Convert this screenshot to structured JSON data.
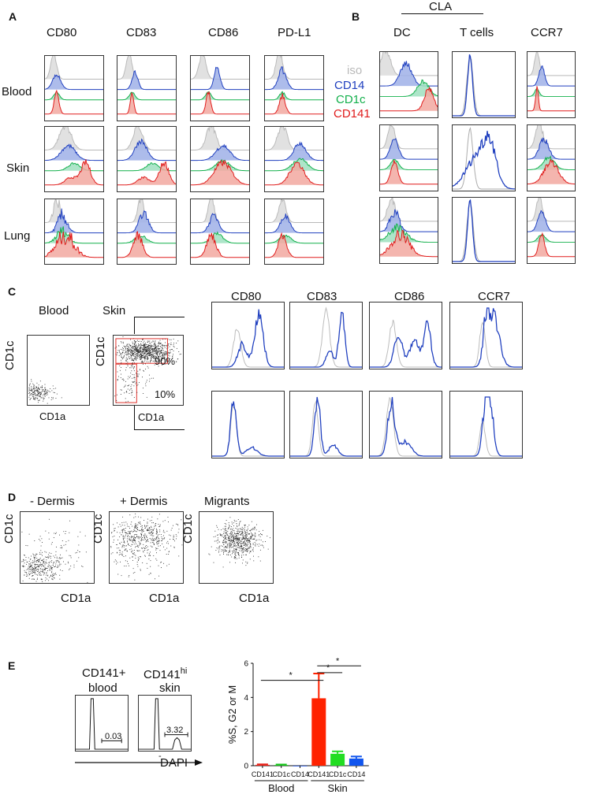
{
  "panels": {
    "A": "A",
    "B": "B",
    "C": "C",
    "D": "D",
    "E": "E"
  },
  "panelA": {
    "columns": [
      "CD80",
      "CD83",
      "CD86",
      "PD-L1"
    ],
    "rows": [
      "Blood",
      "Skin",
      "Lung"
    ]
  },
  "panelB": {
    "cla_label": "CLA",
    "columns": [
      "DC",
      "T cells",
      "CCR7"
    ],
    "legend": [
      {
        "label": "iso",
        "color": "#b9b9b9"
      },
      {
        "label": "CD14",
        "color": "#1f3fbf"
      },
      {
        "label": "CD1c",
        "color": "#12b04b"
      },
      {
        "label": "CD141",
        "color": "#e01b1b"
      }
    ]
  },
  "panelC": {
    "blood_label": "Blood",
    "skin_label": "Skin",
    "y_label": "CD1c",
    "x_label": "CD1a",
    "gate_high_pct": "90%",
    "gate_low_pct": "10%",
    "hist_columns": [
      "CD80",
      "CD83",
      "CD86",
      "CCR7"
    ]
  },
  "panelD": {
    "titles": [
      "- Dermis",
      "+ Dermis",
      "Migrants"
    ],
    "y_label": "CD1c",
    "x_label": "CD1a"
  },
  "panelE": {
    "hist1_title_line1": "CD141+",
    "hist1_title_line2": "blood",
    "hist1_value": "0.03",
    "hist2_title_main": "CD141",
    "hist2_title_sup": "hi",
    "hist2_title_line2": "skin",
    "hist2_value": "3.32",
    "dapi_label": "DAPI",
    "minus_sign": "-",
    "sig_marker": "*"
  },
  "chart_data": {
    "type": "bar",
    "ylabel": "%S, G2 or M",
    "ylim": [
      0,
      6
    ],
    "yticks": [
      0,
      2,
      4,
      6
    ],
    "categories": [
      "CD141",
      "CD1c",
      "CD14",
      "CD141",
      "CD1c",
      "CD14"
    ],
    "groups": [
      {
        "name": "Blood",
        "from": 0,
        "to": 2
      },
      {
        "name": "Skin",
        "from": 3,
        "to": 5
      }
    ],
    "values": [
      0.05,
      0.04,
      0.0,
      3.95,
      0.7,
      0.42
    ],
    "errors": [
      0.03,
      0.03,
      0.0,
      1.45,
      0.14,
      0.12
    ],
    "colors": [
      "#e8241b",
      "#18c41c",
      "#1d4fe0",
      "#ff2200",
      "#22dd22",
      "#1155ee"
    ],
    "significance": [
      {
        "from": 0,
        "to": 3,
        "label": "*"
      },
      {
        "from": 3,
        "to": 4,
        "label": "*"
      },
      {
        "from": 3,
        "to": 5,
        "label": "*"
      }
    ]
  }
}
